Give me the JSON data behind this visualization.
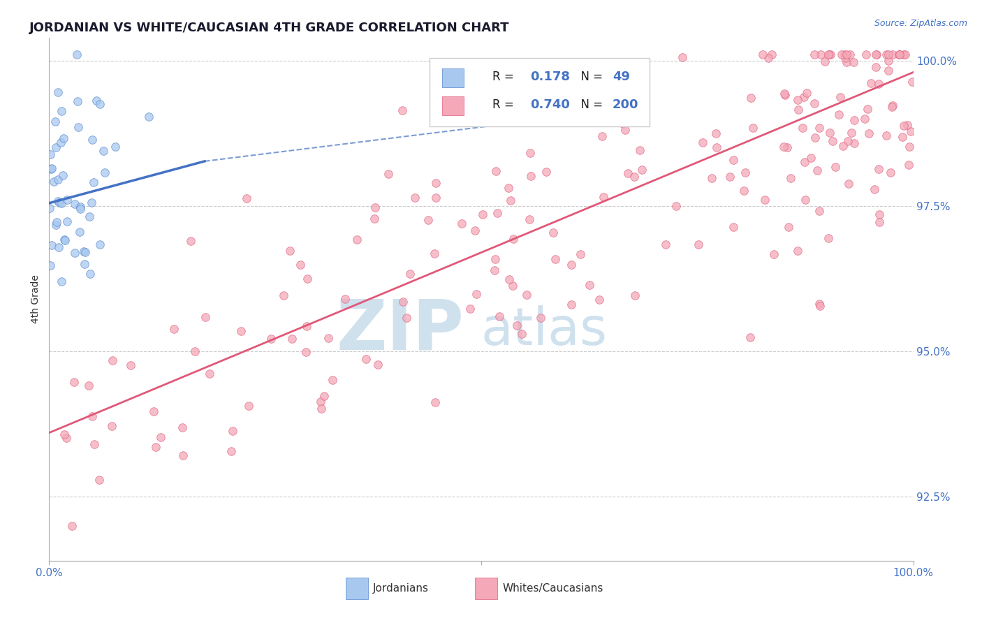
{
  "title": "JORDANIAN VS WHITE/CAUCASIAN 4TH GRADE CORRELATION CHART",
  "source": "Source: ZipAtlas.com",
  "ylabel": "4th Grade",
  "legend_r": [
    0.178,
    0.74
  ],
  "legend_n": [
    49,
    200
  ],
  "blue_fill": "#A8C8F0",
  "blue_edge": "#5588CC",
  "blue_line": "#4472C4",
  "pink_fill": "#F4A8B8",
  "pink_edge": "#E06080",
  "pink_line": "#E05878",
  "axis_color": "#4472C4",
  "grid_color": "#CCCCCC",
  "text_color": "#333333",
  "watermark_color": "#C8DCEC",
  "background_color": "#FFFFFF",
  "xlim": [
    0.0,
    1.0
  ],
  "ylim": [
    0.914,
    1.004
  ],
  "yticks": [
    0.925,
    0.95,
    0.975,
    1.0
  ],
  "ytick_labels": [
    "92.5%",
    "95.0%",
    "97.5%",
    "100.0%"
  ],
  "grid_yticks": [
    0.925,
    0.95,
    0.975,
    1.0
  ],
  "jordan_line_x": [
    0.0,
    0.35
  ],
  "jordan_line_y": [
    0.9755,
    0.9895
  ],
  "white_line_x": [
    0.0,
    1.0
  ],
  "white_line_y": [
    0.936,
    0.998
  ]
}
